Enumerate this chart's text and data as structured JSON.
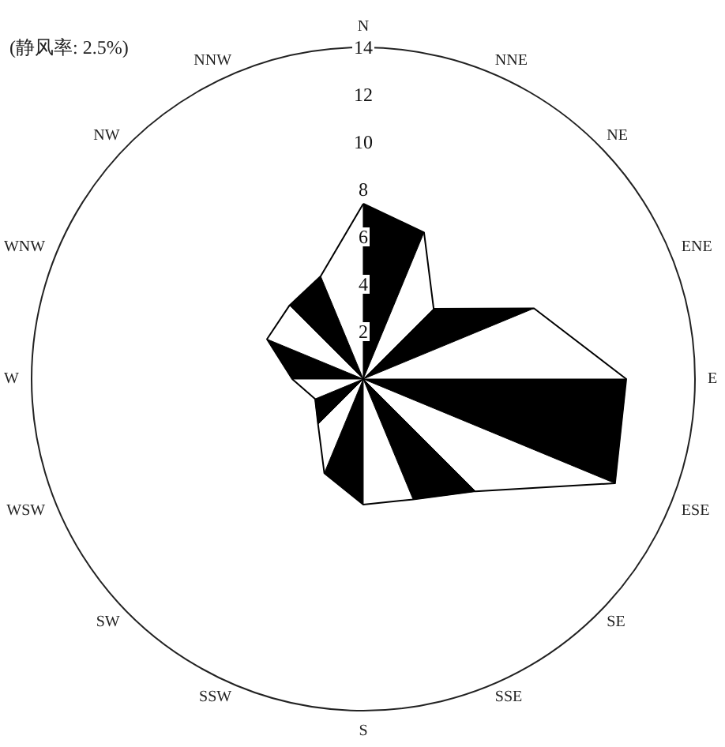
{
  "chart_data": {
    "type": "radar",
    "annotations": [
      "(静风率: 2.5%)"
    ],
    "categories": [
      "N",
      "NNE",
      "NE",
      "ENE",
      "E",
      "ESE",
      "SE",
      "SSE",
      "S",
      "SSW",
      "SW",
      "WSW",
      "W",
      "WNW",
      "NW",
      "NNW"
    ],
    "series": [
      {
        "color": "#000000",
        "values": [
          7.4,
          6.7,
          4.2,
          7.8,
          11.1,
          11.5,
          6.7,
          5.5,
          5.3,
          4.3,
          2.7,
          2.2,
          3.0,
          4.4,
          4.4,
          4.7
        ]
      }
    ],
    "ylim": [
      0,
      14
    ],
    "yticks": [
      2,
      4,
      6,
      8,
      10,
      12,
      14
    ],
    "grid": false
  }
}
